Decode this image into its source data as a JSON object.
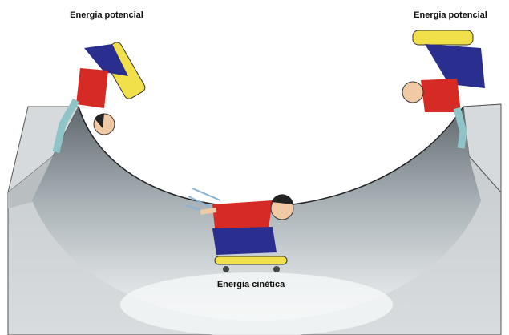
{
  "labels": [
    "Energia potencial",
    "Energia potencial",
    "Energia cinética"
  ]
}
